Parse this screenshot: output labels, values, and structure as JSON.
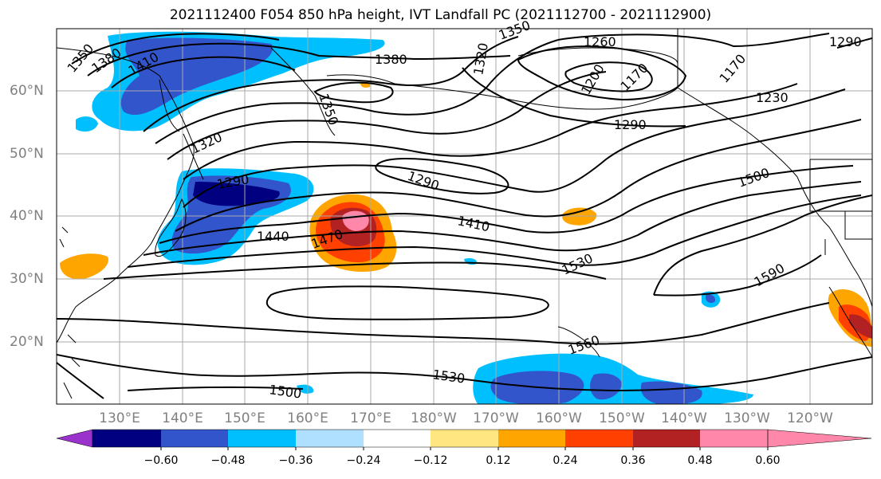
{
  "title": "2021112400 F054 850 hPa height, IVT Landfall PC (2021112700 - 2021112900)",
  "map": {
    "lat_labels": [
      "60°N",
      "50°N",
      "40°N",
      "30°N",
      "20°N"
    ],
    "lon_labels": [
      "130°E",
      "140°E",
      "150°E",
      "160°E",
      "170°E",
      "180°W",
      "170°W",
      "160°W",
      "150°W",
      "140°W",
      "130°W",
      "120°W"
    ],
    "contour_labels": [
      "1350",
      "1380",
      "1410",
      "1380",
      "1350",
      "1320",
      "1260",
      "1290",
      "1200",
      "1170",
      "1170",
      "1230",
      "1290",
      "1350",
      "1320",
      "1290",
      "1290",
      "1440",
      "1470",
      "1410",
      "1500",
      "1530",
      "1590",
      "1560",
      "1530",
      "1500"
    ],
    "contour_color": "#000000",
    "coastline_color": "#000000",
    "grid_color": "#a9a9a9"
  },
  "colorbar": {
    "tick_labels": [
      "−0.60",
      "−0.48",
      "−0.36",
      "−0.24",
      "−0.12",
      "0.12",
      "0.24",
      "0.36",
      "0.48",
      "0.60"
    ],
    "colors": [
      "#9933cc",
      "#000080",
      "#3355cc",
      "#00bfff",
      "#b0e0ff",
      "#ffffff",
      "#ffe680",
      "#ffa500",
      "#ff4000",
      "#b22222",
      "#ff88aa"
    ]
  }
}
